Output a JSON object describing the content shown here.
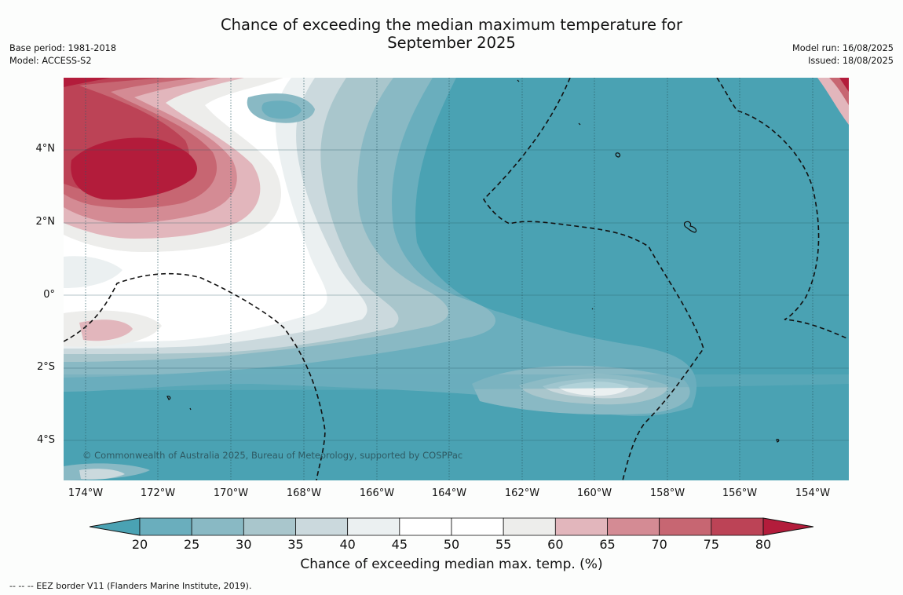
{
  "title_line1": "Chance of exceeding the median maximum temperature for",
  "title_line2": "September 2025",
  "base_period": "Base period: 1981-2018",
  "model": "Model: ACCESS-S2",
  "model_run": "Model run: 16/08/2025",
  "issued": "Issued: 18/08/2025",
  "copyright": "© Commonwealth of Australia 2025, Bureau of Meteorology, supported by COSPPac",
  "lat_labels": [
    "4°N",
    "2°N",
    "0°",
    "2°S",
    "4°S"
  ],
  "lon_labels": [
    "174°W",
    "172°W",
    "170°W",
    "168°W",
    "166°W",
    "164°W",
    "162°W",
    "160°W",
    "158°W",
    "156°W",
    "154°W"
  ],
  "colorbar": {
    "ticks": [
      "20",
      "25",
      "30",
      "35",
      "40",
      "45",
      "50",
      "55",
      "60",
      "65",
      "70",
      "75",
      "80"
    ],
    "colors": [
      "#4aa2b3",
      "#6aaebd",
      "#89b9c4",
      "#a9c6cc",
      "#cbd9dd",
      "#ebf0f1",
      "#ffffff",
      "#ffffff",
      "#ededeb",
      "#e2b6bc",
      "#d48b94",
      "#c76672",
      "#bc4356",
      "#b31c3b"
    ],
    "label": "Chance of exceeding median max. temp. (%)"
  },
  "footnote": "--  --  -- EEZ border V11 (Flanders Marine Institute, 2019).",
  "colors": {
    "low_extreme": "#4aa2b3",
    "high_extreme": "#b31c3b",
    "eez_line": "#111111"
  }
}
